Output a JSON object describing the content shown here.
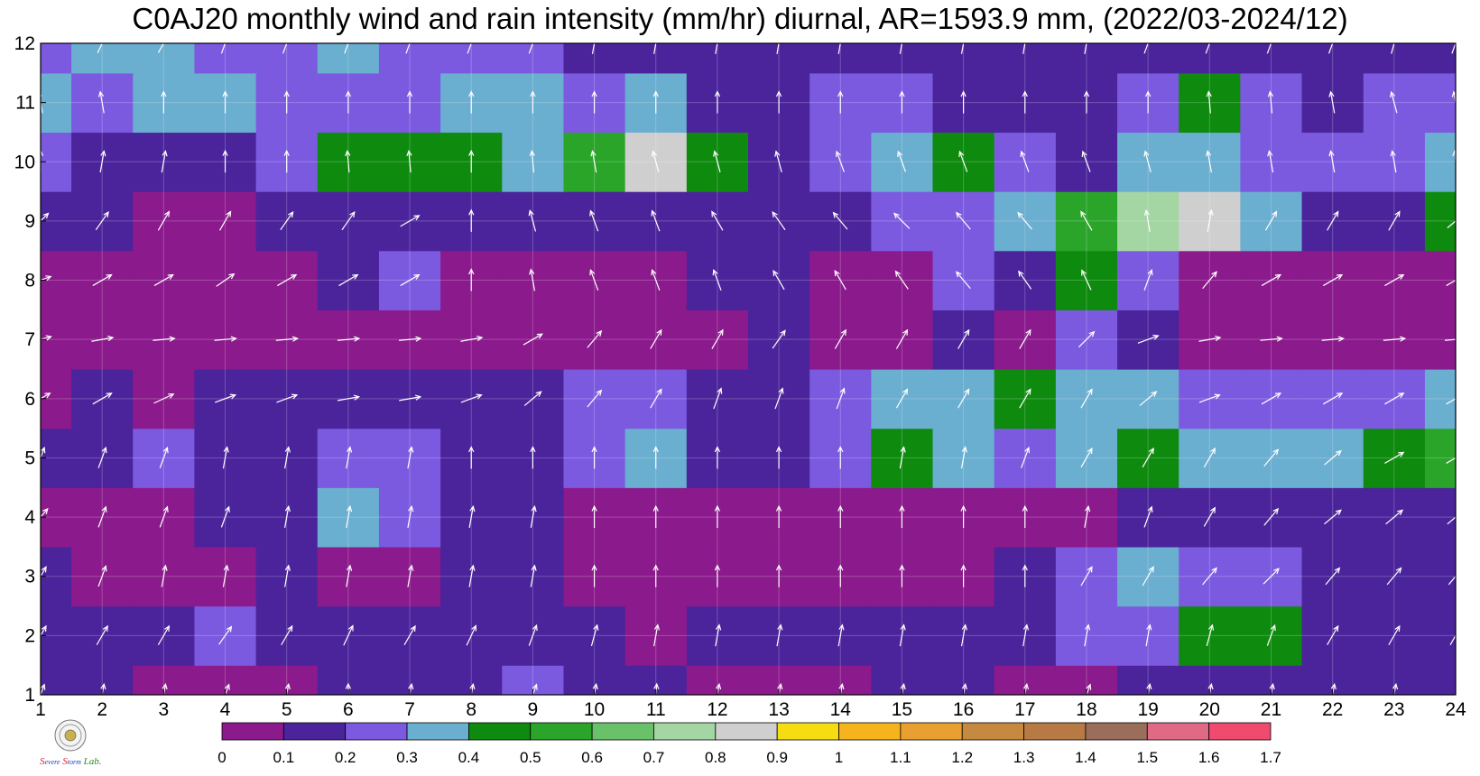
{
  "chart_data": {
    "type": "heatmap",
    "title": "C0AJ20 monthly wind and rain intensity (mm/hr) diurnal, AR=1593.9 mm, (2022/03-2024/12)",
    "x_ticks": [
      "1",
      "2",
      "3",
      "4",
      "5",
      "6",
      "7",
      "8",
      "9",
      "10",
      "11",
      "12",
      "13",
      "14",
      "15",
      "16",
      "17",
      "18",
      "19",
      "20",
      "21",
      "22",
      "23",
      "24"
    ],
    "y_ticks": [
      "1",
      "2",
      "3",
      "4",
      "5",
      "6",
      "7",
      "8",
      "9",
      "10",
      "11",
      "12"
    ],
    "xlim": [
      1,
      24
    ],
    "ylim": [
      1,
      12
    ],
    "colorbar": {
      "levels": [
        "0",
        "0.1",
        "0.2",
        "0.3",
        "0.4",
        "0.5",
        "0.6",
        "0.7",
        "0.8",
        "0.9",
        "1",
        "1.1",
        "1.2",
        "1.3",
        "1.4",
        "1.5",
        "1.6",
        "1.7"
      ],
      "colors": [
        "#8b1a8c",
        "#4b249b",
        "#7b5ae0",
        "#6aaed0",
        "#0e8a0e",
        "#2aa52a",
        "#69c169",
        "#a3d6a3",
        "#cfcfcf",
        "#f6dc12",
        "#f5b41e",
        "#e8a030",
        "#c58a40",
        "#b87a45",
        "#9a6e5a",
        "#e06a86",
        "#f04a6e",
        "#d8253f"
      ]
    },
    "intensity_grid": [
      [
        0.12,
        0.1,
        0.05,
        0.05,
        0.08,
        0.11,
        0.12,
        0.12,
        0.25,
        0.15,
        0.1,
        0.05,
        0.06,
        0.06,
        0.1,
        0.1,
        0.05,
        0.05,
        0.1,
        0.15,
        0.1,
        0.12,
        0.13,
        0.12
      ],
      [
        0.15,
        0.12,
        0.13,
        0.22,
        0.15,
        0.12,
        0.12,
        0.12,
        0.1,
        0.1,
        0.07,
        0.12,
        0.1,
        0.1,
        0.12,
        0.15,
        0.15,
        0.22,
        0.25,
        0.45,
        0.42,
        0.15,
        0.12,
        0.1
      ],
      [
        0.12,
        0.05,
        0.05,
        0.05,
        0.12,
        0.05,
        0.06,
        0.15,
        0.1,
        0.05,
        0.05,
        0.05,
        0.05,
        0.05,
        0.05,
        0.05,
        0.1,
        0.25,
        0.32,
        0.25,
        0.2,
        0.12,
        0.12,
        0.1
      ],
      [
        0.08,
        0.05,
        0.05,
        0.12,
        0.15,
        0.35,
        0.25,
        0.12,
        0.1,
        0.05,
        0.05,
        0.05,
        0.05,
        0.05,
        0.05,
        0.05,
        0.05,
        0.08,
        0.12,
        0.12,
        0.12,
        0.12,
        0.15,
        0.15
      ],
      [
        0.15,
        0.12,
        0.22,
        0.18,
        0.15,
        0.22,
        0.25,
        0.12,
        0.1,
        0.28,
        0.33,
        0.12,
        0.1,
        0.25,
        0.45,
        0.3,
        0.25,
        0.3,
        0.48,
        0.3,
        0.3,
        0.35,
        0.4,
        0.55
      ],
      [
        0.06,
        0.1,
        0.08,
        0.1,
        0.12,
        0.12,
        0.1,
        0.1,
        0.1,
        0.2,
        0.25,
        0.1,
        0.12,
        0.25,
        0.3,
        0.35,
        0.45,
        0.35,
        0.3,
        0.25,
        0.25,
        0.25,
        0.22,
        0.35
      ],
      [
        0.05,
        0.05,
        0.05,
        0.05,
        0.05,
        0.05,
        0.05,
        0.05,
        0.05,
        0.05,
        0.05,
        0.08,
        0.1,
        0.05,
        0.05,
        0.15,
        0.05,
        0.2,
        0.1,
        0.05,
        0.05,
        0.05,
        0.05,
        0.05
      ],
      [
        0.05,
        0.05,
        0.05,
        0.05,
        0.08,
        0.1,
        0.25,
        0.05,
        0.05,
        0.05,
        0.05,
        0.12,
        0.1,
        0.05,
        0.05,
        0.2,
        0.12,
        0.45,
        0.25,
        0.05,
        0.05,
        0.05,
        0.05,
        0.05
      ],
      [
        0.1,
        0.12,
        0.05,
        0.08,
        0.15,
        0.12,
        0.12,
        0.1,
        0.12,
        0.1,
        0.12,
        0.15,
        0.15,
        0.18,
        0.2,
        0.25,
        0.3,
        0.55,
        0.7,
        0.85,
        0.35,
        0.12,
        0.15,
        0.42
      ],
      [
        0.22,
        0.18,
        0.15,
        0.18,
        0.25,
        0.45,
        0.45,
        0.48,
        0.3,
        0.5,
        0.85,
        0.4,
        0.15,
        0.25,
        0.3,
        0.45,
        0.25,
        0.15,
        0.3,
        0.35,
        0.25,
        0.2,
        0.22,
        0.3
      ],
      [
        0.3,
        0.25,
        0.32,
        0.3,
        0.2,
        0.22,
        0.25,
        0.32,
        0.35,
        0.28,
        0.3,
        0.15,
        0.12,
        0.2,
        0.22,
        0.15,
        0.12,
        0.12,
        0.2,
        0.45,
        0.22,
        0.15,
        0.25,
        0.2
      ],
      [
        0.25,
        0.3,
        0.32,
        0.25,
        0.25,
        0.35,
        0.22,
        0.25,
        0.2,
        0.15,
        0.15,
        0.12,
        0.12,
        0.12,
        0.12,
        0.12,
        0.15,
        0.1,
        0.12,
        0.12,
        0.12,
        0.12,
        0.12,
        0.12
      ]
    ],
    "wind_direction_deg": [
      [
        200,
        190,
        190,
        200,
        190,
        180,
        190,
        190,
        200,
        190,
        185,
        190,
        190,
        190,
        190,
        190,
        190,
        200,
        190,
        190,
        190,
        190,
        190,
        230
      ],
      [
        210,
        210,
        210,
        215,
        210,
        205,
        210,
        205,
        200,
        195,
        190,
        190,
        190,
        190,
        190,
        190,
        190,
        190,
        190,
        195,
        200,
        210,
        210,
        210
      ],
      [
        210,
        200,
        190,
        190,
        190,
        190,
        190,
        190,
        190,
        180,
        180,
        180,
        180,
        180,
        180,
        180,
        180,
        210,
        210,
        220,
        225,
        220,
        220,
        220
      ],
      [
        220,
        200,
        200,
        200,
        190,
        190,
        190,
        190,
        190,
        180,
        180,
        180,
        180,
        180,
        180,
        180,
        180,
        190,
        200,
        210,
        220,
        230,
        230,
        230
      ],
      [
        200,
        200,
        200,
        190,
        190,
        190,
        190,
        180,
        180,
        180,
        180,
        180,
        180,
        180,
        190,
        190,
        200,
        210,
        210,
        210,
        220,
        230,
        240,
        240
      ],
      [
        240,
        240,
        245,
        250,
        250,
        260,
        260,
        250,
        230,
        220,
        210,
        200,
        200,
        200,
        210,
        210,
        210,
        210,
        230,
        250,
        240,
        240,
        240,
        240
      ],
      [
        255,
        260,
        265,
        265,
        265,
        265,
        265,
        260,
        240,
        220,
        210,
        210,
        215,
        210,
        210,
        210,
        210,
        225,
        250,
        260,
        265,
        265,
        265,
        265
      ],
      [
        250,
        240,
        240,
        235,
        240,
        240,
        240,
        180,
        170,
        160,
        160,
        160,
        150,
        150,
        145,
        140,
        145,
        155,
        200,
        220,
        240,
        240,
        240,
        240
      ],
      [
        225,
        215,
        210,
        210,
        215,
        215,
        240,
        180,
        165,
        160,
        160,
        150,
        145,
        140,
        135,
        140,
        140,
        150,
        170,
        190,
        210,
        210,
        210,
        230
      ],
      [
        180,
        190,
        190,
        180,
        180,
        175,
        175,
        180,
        175,
        170,
        165,
        165,
        165,
        160,
        160,
        160,
        160,
        160,
        165,
        170,
        170,
        170,
        170,
        175
      ],
      [
        170,
        170,
        180,
        180,
        180,
        180,
        180,
        180,
        180,
        180,
        180,
        180,
        180,
        180,
        180,
        180,
        180,
        180,
        180,
        175,
        175,
        170,
        165,
        170
      ],
      [
        200,
        205,
        210,
        200,
        200,
        200,
        200,
        200,
        200,
        190,
        190,
        190,
        190,
        190,
        190,
        190,
        190,
        190,
        200,
        200,
        200,
        200,
        195,
        200
      ]
    ]
  }
}
